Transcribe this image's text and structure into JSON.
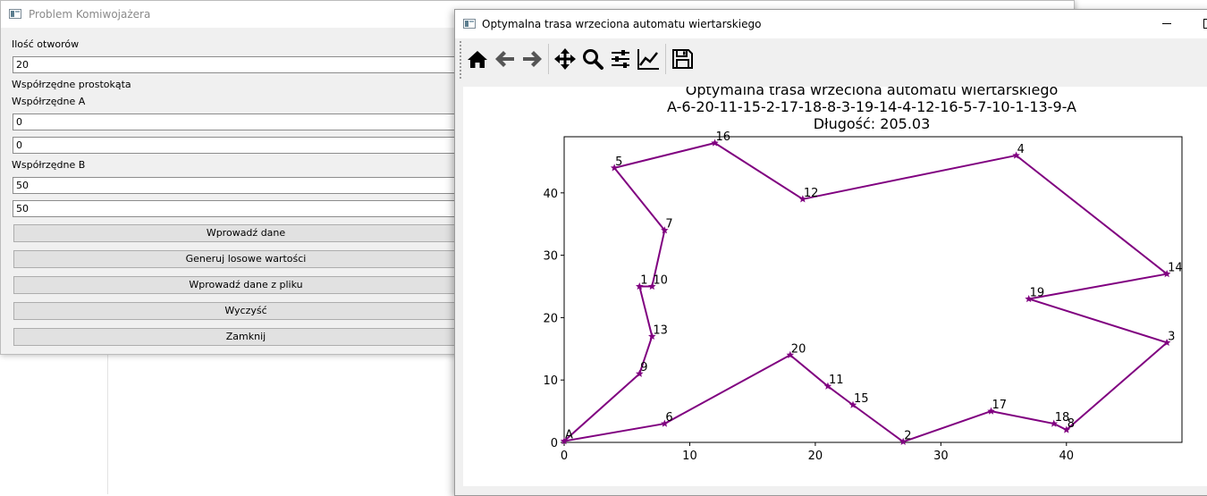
{
  "left_window": {
    "title": "Problem Komiwojażera",
    "holes_label": "Ilość otworów",
    "holes_value": "20",
    "rect_label": "Współrzędne prostokąta",
    "a_label": "Współrzędne A",
    "a_x": "0",
    "a_y": "0",
    "b_label": "Współrzędne B",
    "b_x": "50",
    "b_y": "50",
    "buttons": {
      "enter": "Wprowadź dane",
      "random": "Generuj losowe wartości",
      "file": "Wprowadź dane z pliku",
      "clear": "Wyczyść",
      "close": "Zamknij"
    }
  },
  "right_window": {
    "title": "Optymalna trasa wrzeciona automatu wiertarskiego",
    "toolbar": [
      "home-icon",
      "back-icon",
      "forward-icon",
      "pan-icon",
      "zoom-icon",
      "configure-subplots-icon",
      "edit-axis-icon",
      "save-icon"
    ]
  },
  "chart_data": {
    "type": "line",
    "title_lines": [
      "Optymalna trasa wrzeciona automatu wiertarskiego",
      "A-6-20-11-15-2-17-18-8-3-19-14-4-12-16-5-7-10-1-13-9-A",
      "Długość: 205.03"
    ],
    "xlim": [
      0,
      49.2
    ],
    "ylim": [
      0,
      49
    ],
    "xticks": [
      0,
      10,
      20,
      30,
      40
    ],
    "yticks": [
      0,
      10,
      20,
      30,
      40
    ],
    "line_color": "#800080",
    "marker": "star",
    "route": [
      "A",
      "6",
      "20",
      "11",
      "15",
      "2",
      "17",
      "18",
      "8",
      "3",
      "19",
      "14",
      "4",
      "12",
      "16",
      "5",
      "7",
      "10",
      "1",
      "13",
      "9",
      "A"
    ],
    "points": {
      "A": [
        0,
        0.2
      ],
      "1": [
        6,
        25
      ],
      "2": [
        27,
        0.1
      ],
      "3": [
        48,
        16
      ],
      "4": [
        36,
        46
      ],
      "5": [
        4,
        44
      ],
      "6": [
        8,
        3
      ],
      "7": [
        8,
        34
      ],
      "8": [
        40,
        2
      ],
      "9": [
        6,
        11
      ],
      "10": [
        7,
        25
      ],
      "11": [
        21,
        9
      ],
      "12": [
        19,
        39
      ],
      "13": [
        7,
        17
      ],
      "14": [
        48,
        27
      ],
      "15": [
        23,
        6
      ],
      "16": [
        12,
        48
      ],
      "17": [
        34,
        5
      ],
      "18": [
        39,
        3
      ],
      "19": [
        37,
        23
      ],
      "20": [
        18,
        14
      ]
    }
  }
}
